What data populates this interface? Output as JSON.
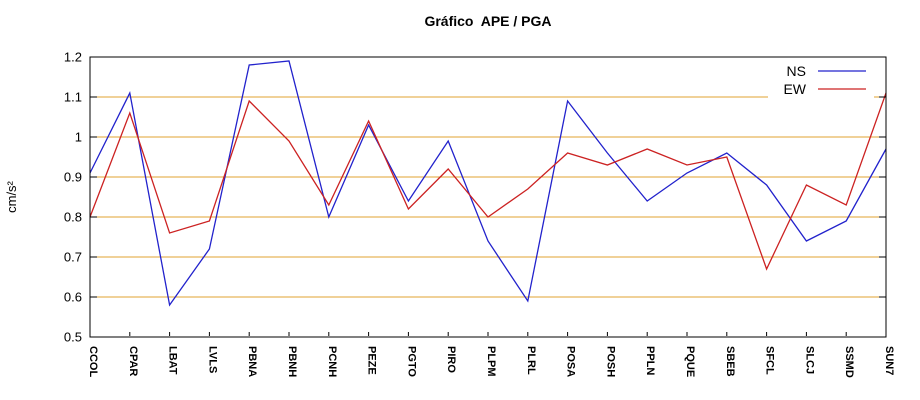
{
  "chart_data": {
    "type": "line",
    "title": "Gráfico  APE / PGA",
    "ylabel": "cm/s²",
    "ylim": [
      0.5,
      1.2
    ],
    "ytick_step": 0.1,
    "ytick_labels": [
      "0.5",
      "0.6",
      "0.7",
      "0.8",
      "0.9",
      "1",
      "1.1",
      "1.2"
    ],
    "grid_values": [
      0.6,
      0.7,
      0.8,
      0.9,
      1.0,
      1.1
    ],
    "grid_on": true,
    "grid_color": "#e0a330",
    "axis_color": "#000000",
    "legend_position": "top-right",
    "categories": [
      "CCOL",
      "CPAR",
      "LBAT",
      "LVLS",
      "PBNA",
      "PBNH",
      "PCNH",
      "PEZE",
      "PGTO",
      "PIRO",
      "PLPM",
      "PLRL",
      "POSA",
      "POSH",
      "PPLN",
      "PQUE",
      "SBEB",
      "SFCL",
      "SLCJ",
      "SSMD",
      "SUN7"
    ],
    "series": [
      {
        "name": "NS",
        "color": "#2222cc",
        "values": [
          0.91,
          1.11,
          0.58,
          0.72,
          1.18,
          1.19,
          0.8,
          1.03,
          0.84,
          0.99,
          0.74,
          0.59,
          1.09,
          0.96,
          0.84,
          0.91,
          0.96,
          0.88,
          0.74,
          0.79,
          0.97
        ]
      },
      {
        "name": "EW",
        "color": "#cc2222",
        "values": [
          0.8,
          1.06,
          0.76,
          0.79,
          1.09,
          0.99,
          0.83,
          1.04,
          0.82,
          0.92,
          0.8,
          0.87,
          0.96,
          0.93,
          0.97,
          0.93,
          0.95,
          0.67,
          0.88,
          0.83,
          1.11
        ]
      }
    ]
  }
}
